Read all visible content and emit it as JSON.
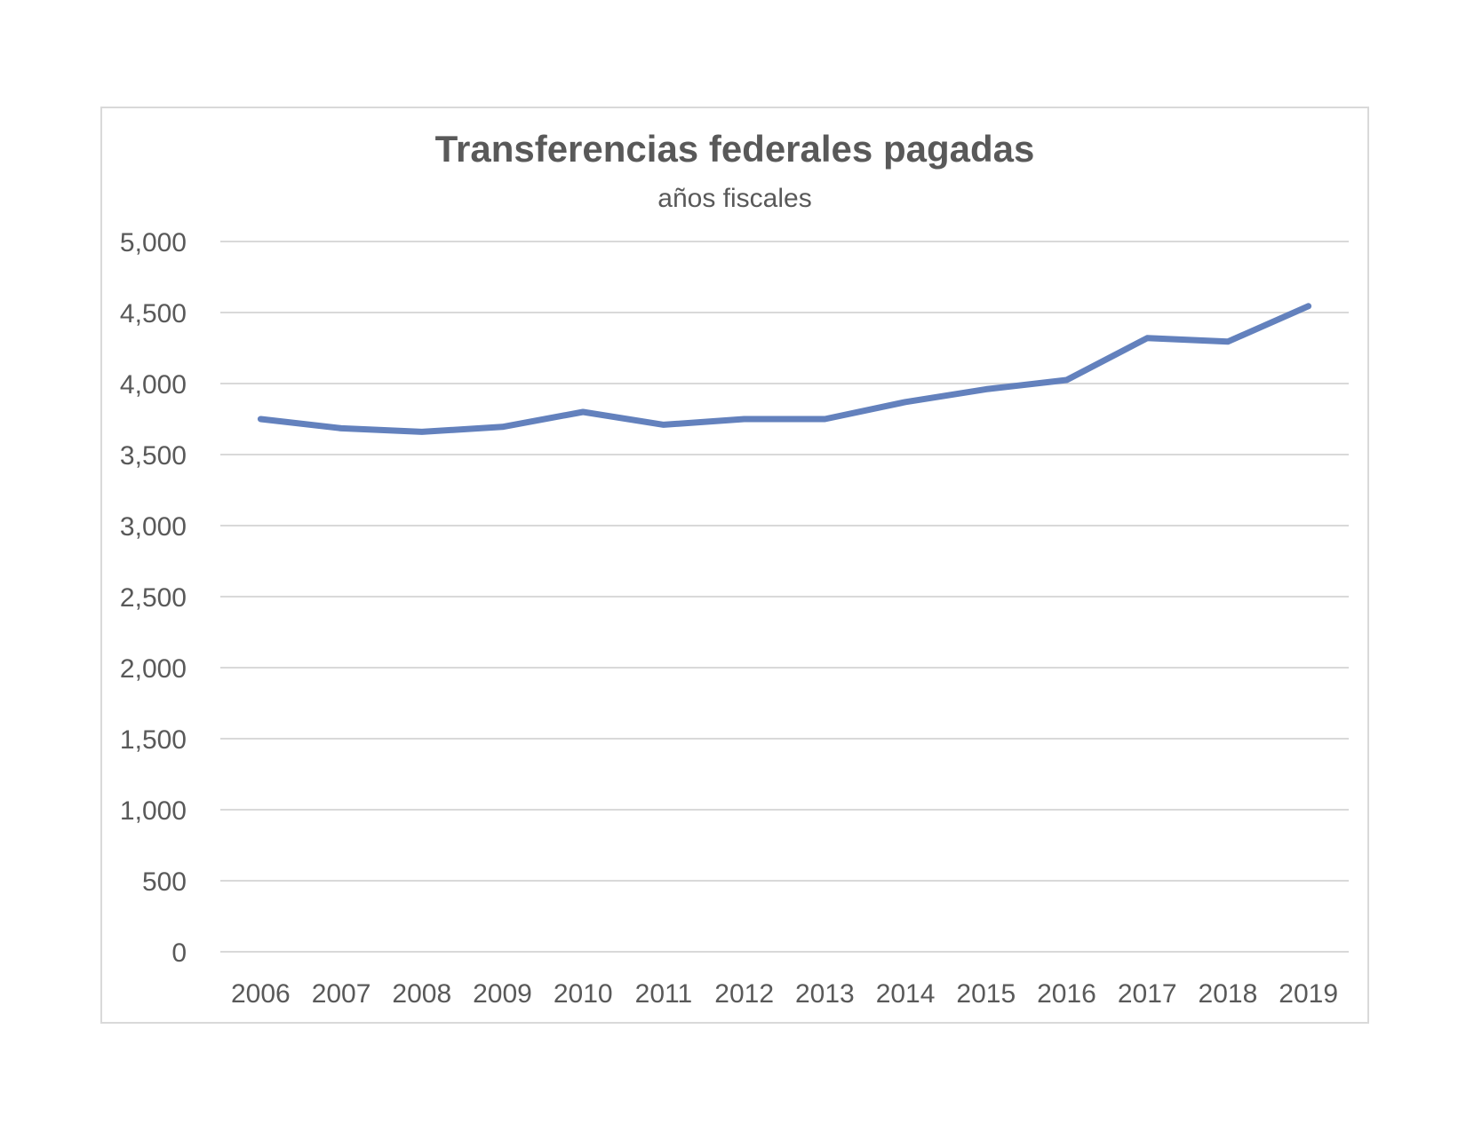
{
  "chart_data": {
    "type": "line",
    "title": "Transferencias federales pagadas",
    "subtitle": "años fiscales",
    "xlabel": "",
    "ylabel": "",
    "categories": [
      "2006",
      "2007",
      "2008",
      "2009",
      "2010",
      "2011",
      "2012",
      "2013",
      "2014",
      "2015",
      "2016",
      "2017",
      "2018",
      "2019"
    ],
    "series": [
      {
        "values": [
          3750,
          3685,
          3660,
          3695,
          3800,
          3710,
          3750,
          3750,
          3870,
          3960,
          4025,
          4320,
          4295,
          4545
        ]
      }
    ],
    "ylim": [
      0,
      5000
    ],
    "ytick_labels": [
      "0",
      "500",
      "1,000",
      "1,500",
      "2,000",
      "2,500",
      "3,000",
      "3,500",
      "4,000",
      "4,500",
      "5,000"
    ],
    "ytick_values": [
      0,
      500,
      1000,
      1500,
      2000,
      2500,
      3000,
      3500,
      4000,
      4500,
      5000
    ],
    "grid": true,
    "legend": "none",
    "colors": {
      "line": "#6381bd",
      "grid": "#d9d9d9",
      "text": "#595959",
      "border": "#d9d9d9"
    }
  }
}
